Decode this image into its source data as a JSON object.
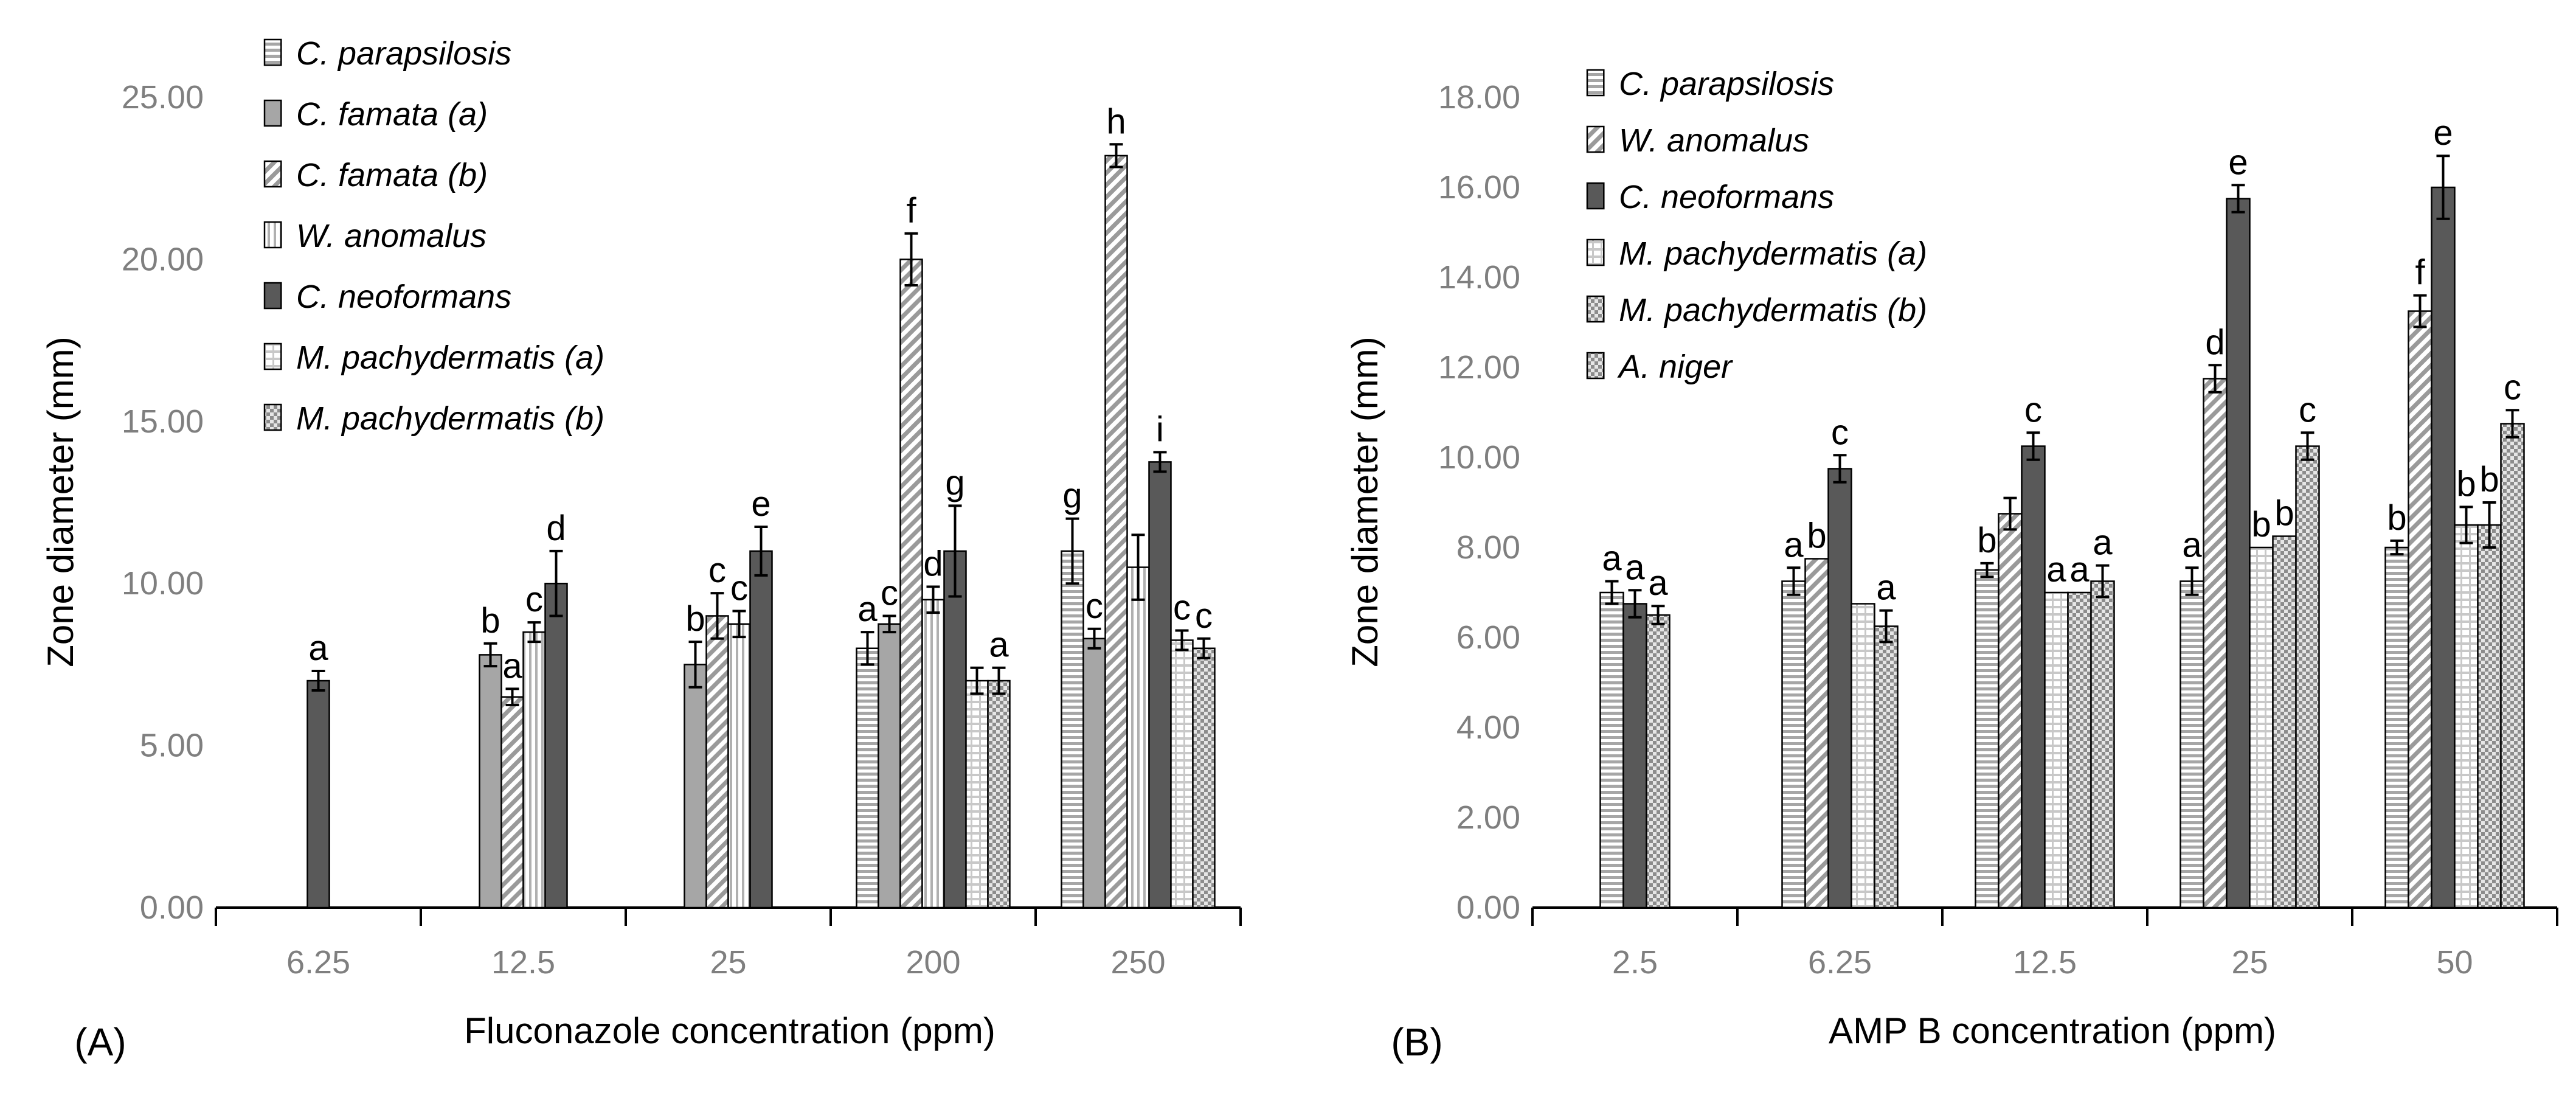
{
  "chart_data": [
    {
      "type": "bar",
      "panel_label": "(A)",
      "xlabel": "Fluconazole concentration (ppm)",
      "ylabel": "Zone diameter (mm)",
      "ylim": [
        0,
        25
      ],
      "yticks": [
        "0.00",
        "5.00",
        "10.00",
        "15.00",
        "20.00",
        "25.00"
      ],
      "categories": [
        "6.25",
        "12.5",
        "25",
        "200",
        "250"
      ],
      "legend_position": "top-left",
      "series": [
        {
          "name": "C. parapsilosis",
          "pattern": "hstripe",
          "values": [
            null,
            null,
            null,
            8.0,
            11.0
          ],
          "errors": [
            null,
            null,
            null,
            0.5,
            1.0
          ],
          "letters": [
            null,
            null,
            null,
            "a",
            "g"
          ]
        },
        {
          "name": "C. famata (a)",
          "pattern": "lightgray",
          "values": [
            null,
            7.8,
            7.5,
            8.75,
            8.3
          ],
          "errors": [
            null,
            0.35,
            0.7,
            0.25,
            0.3
          ],
          "letters": [
            null,
            "b",
            "b",
            "c",
            "c"
          ]
        },
        {
          "name": "C. famata (b)",
          "pattern": "diag",
          "values": [
            null,
            6.5,
            9.0,
            20.0,
            23.2
          ],
          "errors": [
            null,
            0.25,
            0.7,
            0.8,
            0.35
          ],
          "letters": [
            null,
            "a",
            "c",
            "f",
            "h"
          ]
        },
        {
          "name": "W. anomalus",
          "pattern": "vstripe",
          "values": [
            null,
            8.5,
            8.75,
            9.5,
            10.5
          ],
          "errors": [
            null,
            0.3,
            0.4,
            0.4,
            1.0
          ],
          "letters": [
            null,
            "c",
            "c",
            "d",
            ""
          ]
        },
        {
          "name": "C. neoformans",
          "pattern": "dark",
          "values": [
            7.0,
            10.0,
            11.0,
            11.0,
            13.75
          ],
          "errors": [
            0.3,
            1.0,
            0.75,
            1.4,
            0.3
          ],
          "letters": [
            "a",
            "d",
            "e",
            "g",
            "i"
          ]
        },
        {
          "name": "M. pachydermatis (a)",
          "pattern": "grid",
          "values": [
            null,
            null,
            null,
            7.0,
            8.25
          ],
          "errors": [
            null,
            null,
            null,
            0.4,
            0.3
          ],
          "letters": [
            null,
            null,
            null,
            "",
            "c"
          ]
        },
        {
          "name": "M. pachydermatis (b)",
          "pattern": "check",
          "values": [
            null,
            null,
            null,
            7.0,
            8.0
          ],
          "errors": [
            null,
            null,
            null,
            0.4,
            0.3
          ],
          "letters": [
            null,
            null,
            null,
            "a",
            "c"
          ]
        }
      ]
    },
    {
      "type": "bar",
      "panel_label": "(B)",
      "xlabel": "AMP B concentration (ppm)",
      "ylabel": "Zone diameter (mm)",
      "ylim": [
        0,
        18
      ],
      "yticks": [
        "0.00",
        "2.00",
        "4.00",
        "6.00",
        "8.00",
        "10.00",
        "12.00",
        "14.00",
        "16.00",
        "18.00"
      ],
      "categories": [
        "2.5",
        "6.25",
        "12.5",
        "25",
        "50"
      ],
      "legend_position": "top-left",
      "series": [
        {
          "name": "C. parapsilosis",
          "pattern": "hstripe",
          "values": [
            7.0,
            7.25,
            7.5,
            7.25,
            8.0
          ],
          "errors": [
            0.25,
            0.3,
            0.15,
            0.3,
            0.15
          ],
          "letters": [
            "a",
            "a",
            "b",
            "a",
            "b"
          ]
        },
        {
          "name": "W. anomalus",
          "pattern": "diag",
          "values": [
            null,
            7.75,
            8.75,
            11.75,
            13.25
          ],
          "errors": [
            null,
            0.0,
            0.35,
            0.3,
            0.35
          ],
          "letters": [
            null,
            "b",
            "",
            "d",
            "f"
          ]
        },
        {
          "name": "C. neoformans",
          "pattern": "dark",
          "values": [
            6.75,
            9.75,
            10.25,
            15.75,
            16.0
          ],
          "errors": [
            0.3,
            0.3,
            0.3,
            0.3,
            0.7
          ],
          "letters": [
            "a",
            "c",
            "c",
            "e",
            "e"
          ]
        },
        {
          "name": "M. pachydermatis (a)",
          "pattern": "grid",
          "values": [
            null,
            6.75,
            7.0,
            8.0,
            8.5
          ],
          "errors": [
            null,
            0.0,
            0.0,
            0.0,
            0.4
          ],
          "letters": [
            null,
            "",
            "a",
            "b",
            "b"
          ]
        },
        {
          "name": "M. pachydermatis (b)",
          "pattern": "check",
          "values": [
            null,
            null,
            7.0,
            8.25,
            8.5
          ],
          "errors": [
            null,
            null,
            0.0,
            0.0,
            0.5
          ],
          "letters": [
            null,
            null,
            "a",
            "b",
            "b"
          ]
        },
        {
          "name": "A. niger",
          "pattern": "check",
          "values": [
            6.5,
            6.25,
            7.25,
            10.25,
            10.75
          ],
          "errors": [
            0.2,
            0.35,
            0.35,
            0.3,
            0.3
          ],
          "letters": [
            "a",
            "a",
            "a",
            "c",
            "c"
          ]
        }
      ]
    }
  ]
}
